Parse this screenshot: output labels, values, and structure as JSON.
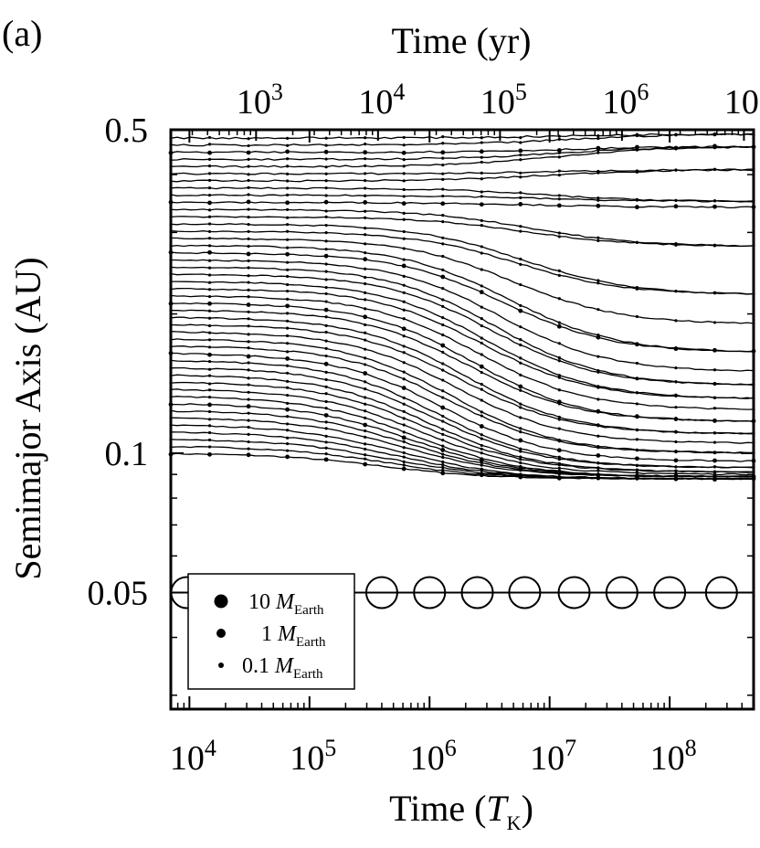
{
  "chart_data": {
    "type": "line",
    "panel_label": "(a)",
    "xlabel_bottom": {
      "text": "Time (",
      "italic": "T",
      "sub": "K",
      "close": ")"
    },
    "xlabel_top": "Time (yr)",
    "ylabel": "Semimajor Axis (AU)",
    "x_scale": "log",
    "y_scale": "log",
    "x_range_TK": [
      7000,
      500000000
    ],
    "x_range_yr": [
      200,
      12000000
    ],
    "y_range_AU": [
      0.028,
      0.5
    ],
    "bottom_ticks": [
      {
        "label": "10",
        "exp": "4"
      },
      {
        "label": "10",
        "exp": "5"
      },
      {
        "label": "10",
        "exp": "6"
      },
      {
        "label": "10",
        "exp": "7"
      },
      {
        "label": "10",
        "exp": "8"
      }
    ],
    "top_ticks": [
      {
        "label": "10",
        "exp": "3"
      },
      {
        "label": "10",
        "exp": "4"
      },
      {
        "label": "10",
        "exp": "5"
      },
      {
        "label": "10",
        "exp": "6"
      },
      {
        "label": "10",
        "exp": "7"
      }
    ],
    "y_ticks": [
      "0.5",
      "0.1",
      "0.05"
    ],
    "legend": {
      "placement": "bottom-left",
      "entries": [
        {
          "value": "10",
          "symbol": "M",
          "sub": "Earth",
          "mass": 10
        },
        {
          "value": "1",
          "symbol": "M",
          "sub": "Earth",
          "mass": 1
        },
        {
          "value": "0.1",
          "symbol": "M",
          "sub": "Earth",
          "mass": 0.1
        }
      ]
    },
    "giant_planet": {
      "a_AU": 0.05,
      "marker": "open circle",
      "x_TK": [
        9500,
        29000,
        70000,
        160000,
        400000,
        1000000,
        2500000,
        6200000,
        16000000,
        40000000,
        100000000,
        270000000
      ]
    },
    "embryos": {
      "count": 45,
      "initial_a_AU_range": [
        0.1,
        0.48
      ],
      "final_a_AU": [
        0.088,
        0.088,
        0.088,
        0.089,
        0.089,
        0.09,
        0.091,
        0.093,
        0.096,
        0.1,
        0.105,
        0.11,
        0.117,
        0.124,
        0.131,
        0.14,
        0.15,
        0.165,
        0.19,
        0.22,
        0.28,
        0.34,
        0.35,
        0.41,
        0.46,
        0.46,
        0.49
      ]
    }
  }
}
